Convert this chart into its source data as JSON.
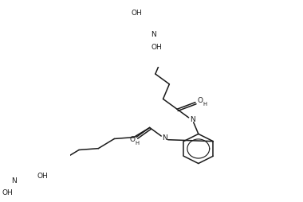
{
  "bg_color": "#ffffff",
  "line_color": "#1a1a1a",
  "font_size": 6.5,
  "line_width": 1.1,
  "figsize": [
    3.8,
    2.54
  ],
  "dpi": 100,
  "xlim": [
    0,
    380
  ],
  "ylim": [
    0,
    254
  ]
}
